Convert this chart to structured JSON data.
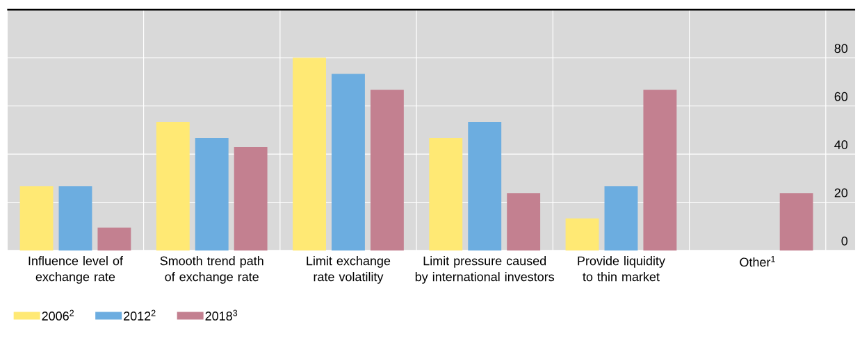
{
  "chart_data": {
    "type": "bar",
    "categories": [
      "Influence level of exchange rate",
      "Smooth trend path of exchange rate",
      "Limit exchange rate volatility",
      "Limit pressure caused by international investors",
      "Provide liquidity to thin market",
      "Other$^{1}$"
    ],
    "series": [
      {
        "name": "2006$^{2}$",
        "color": "#ffe974",
        "values": [
          26.7,
          53.3,
          80,
          46.7,
          13.3,
          null
        ]
      },
      {
        "name": "2012$^{2}$",
        "color": "#6cade0",
        "values": [
          26.7,
          46.7,
          73.3,
          53.3,
          26.7,
          null
        ]
      },
      {
        "name": "2018$^{3}$",
        "color": "#c38090",
        "values": [
          9.5,
          42.9,
          66.7,
          23.8,
          66.7,
          23.8
        ]
      }
    ],
    "ylim": [
      0,
      100
    ],
    "yticks": [
      0,
      20,
      40,
      60,
      80
    ],
    "grid": true,
    "legend": "bottom left"
  }
}
